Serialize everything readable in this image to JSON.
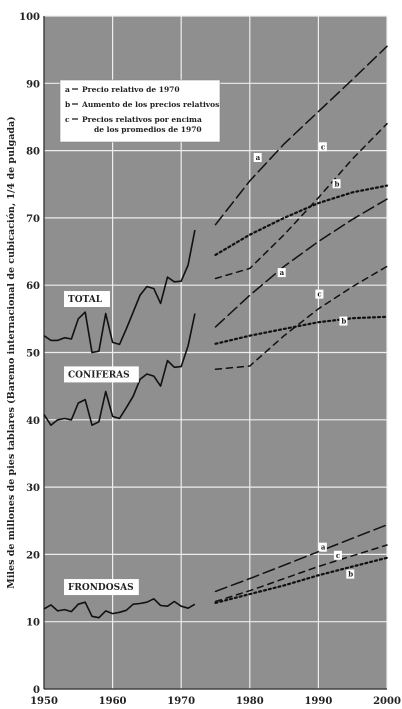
{
  "chart_data": {
    "type": "line",
    "title": "",
    "ylabel": "Miles de millones de pies tablares (Baremo internacional de cubicación, 1/4 de pulgada)",
    "xlabel": "",
    "xlim": [
      1950,
      2000
    ],
    "ylim": [
      0,
      100
    ],
    "x_tick_labels": [
      "1950",
      "1960",
      "1970",
      "1980",
      "1990",
      "2000"
    ],
    "y_tick_labels": [
      "0",
      "10",
      "20",
      "30",
      "40",
      "50",
      "60",
      "70",
      "80",
      "90",
      "100"
    ],
    "grid": true,
    "legend_position": "top-left",
    "legend": [
      {
        "key": "a",
        "text": "Precio relativo de 1970",
        "dash": "long-dash"
      },
      {
        "key": "b",
        "text": "Aumento de los precios relativos",
        "dash": "dotted"
      },
      {
        "key": "c",
        "text": "Precios relativos por encima de los promedios de 1970",
        "dash": "short-dash"
      }
    ],
    "group_labels": [
      {
        "text": "TOTAL",
        "x": 1953.5,
        "y": 57.5
      },
      {
        "text": "CONIFERAS",
        "x": 1953.5,
        "y": 46.3
      },
      {
        "text": "FRONDOSAS",
        "x": 1953.5,
        "y": 14.7
      }
    ],
    "historical": [
      {
        "group": "TOTAL",
        "points": [
          [
            1950,
            52.5
          ],
          [
            1951,
            51.8
          ],
          [
            1952,
            51.8
          ],
          [
            1953,
            52.2
          ],
          [
            1954,
            52.0
          ],
          [
            1955,
            55.0
          ],
          [
            1956,
            56.0
          ],
          [
            1957,
            50.0
          ],
          [
            1958,
            50.2
          ],
          [
            1959,
            55.8
          ],
          [
            1960,
            51.5
          ],
          [
            1961,
            51.2
          ],
          [
            1962,
            53.5
          ],
          [
            1963,
            56.0
          ],
          [
            1964,
            58.5
          ],
          [
            1965,
            59.8
          ],
          [
            1966,
            59.5
          ],
          [
            1967,
            57.3
          ],
          [
            1968,
            61.2
          ],
          [
            1969,
            60.5
          ],
          [
            1970,
            60.6
          ],
          [
            1971,
            63.0
          ],
          [
            1972,
            68.2
          ]
        ]
      },
      {
        "group": "CONIFERAS",
        "points": [
          [
            1950,
            40.8
          ],
          [
            1951,
            39.2
          ],
          [
            1952,
            40.0
          ],
          [
            1953,
            40.2
          ],
          [
            1954,
            40.0
          ],
          [
            1955,
            42.5
          ],
          [
            1956,
            43.0
          ],
          [
            1957,
            39.2
          ],
          [
            1958,
            39.7
          ],
          [
            1959,
            44.2
          ],
          [
            1960,
            40.5
          ],
          [
            1961,
            40.2
          ],
          [
            1962,
            41.8
          ],
          [
            1963,
            43.5
          ],
          [
            1964,
            46.0
          ],
          [
            1965,
            46.8
          ],
          [
            1966,
            46.5
          ],
          [
            1967,
            45.0
          ],
          [
            1968,
            48.8
          ],
          [
            1969,
            47.8
          ],
          [
            1970,
            47.9
          ],
          [
            1971,
            51.0
          ],
          [
            1972,
            55.8
          ]
        ]
      },
      {
        "group": "FRONDOSAS",
        "points": [
          [
            1950,
            11.9
          ],
          [
            1951,
            12.5
          ],
          [
            1952,
            11.6
          ],
          [
            1953,
            11.8
          ],
          [
            1954,
            11.5
          ],
          [
            1955,
            12.6
          ],
          [
            1956,
            12.9
          ],
          [
            1957,
            10.8
          ],
          [
            1958,
            10.6
          ],
          [
            1959,
            11.6
          ],
          [
            1960,
            11.2
          ],
          [
            1961,
            11.4
          ],
          [
            1962,
            11.7
          ],
          [
            1963,
            12.6
          ],
          [
            1964,
            12.7
          ],
          [
            1965,
            12.9
          ],
          [
            1966,
            13.4
          ],
          [
            1967,
            12.4
          ],
          [
            1968,
            12.3
          ],
          [
            1969,
            13.0
          ],
          [
            1970,
            12.3
          ],
          [
            1971,
            12.0
          ],
          [
            1972,
            12.6
          ]
        ]
      }
    ],
    "projections": [
      {
        "group": "TOTAL",
        "key": "a",
        "points": [
          [
            1975,
            69.0
          ],
          [
            1980,
            75.5
          ],
          [
            1985,
            81.0
          ],
          [
            1990,
            85.8
          ],
          [
            1995,
            90.6
          ],
          [
            2000,
            95.5
          ]
        ]
      },
      {
        "group": "TOTAL",
        "key": "b",
        "points": [
          [
            1975,
            64.5
          ],
          [
            1980,
            67.5
          ],
          [
            1985,
            70.0
          ],
          [
            1990,
            72.2
          ],
          [
            1995,
            73.8
          ],
          [
            2000,
            74.8
          ]
        ]
      },
      {
        "group": "TOTAL",
        "key": "c",
        "points": [
          [
            1975,
            61.0
          ],
          [
            1980,
            62.5
          ],
          [
            1985,
            67.5
          ],
          [
            1990,
            73.0
          ],
          [
            1995,
            78.8
          ],
          [
            2000,
            84.0
          ]
        ]
      },
      {
        "group": "CONIFERAS",
        "key": "a",
        "points": [
          [
            1975,
            53.8
          ],
          [
            1980,
            58.5
          ],
          [
            1985,
            62.8
          ],
          [
            1990,
            66.5
          ],
          [
            1995,
            69.8
          ],
          [
            2000,
            72.8
          ]
        ]
      },
      {
        "group": "CONIFERAS",
        "key": "b",
        "points": [
          [
            1975,
            51.3
          ],
          [
            1980,
            52.5
          ],
          [
            1985,
            53.5
          ],
          [
            1990,
            54.5
          ],
          [
            1995,
            55.1
          ],
          [
            2000,
            55.3
          ]
        ]
      },
      {
        "group": "CONIFERAS",
        "key": "c",
        "points": [
          [
            1975,
            47.5
          ],
          [
            1980,
            48.0
          ],
          [
            1985,
            52.5
          ],
          [
            1990,
            56.5
          ],
          [
            1995,
            59.8
          ],
          [
            2000,
            62.8
          ]
        ]
      },
      {
        "group": "FRONDOSAS",
        "key": "a",
        "points": [
          [
            1975,
            14.5
          ],
          [
            1980,
            16.4
          ],
          [
            1985,
            18.4
          ],
          [
            1990,
            20.4
          ],
          [
            1995,
            22.4
          ],
          [
            2000,
            24.4
          ]
        ]
      },
      {
        "group": "FRONDOSAS",
        "key": "b",
        "points": [
          [
            1975,
            12.8
          ],
          [
            1980,
            14.1
          ],
          [
            1985,
            15.4
          ],
          [
            1990,
            16.9
          ],
          [
            1995,
            18.2
          ],
          [
            2000,
            19.5
          ]
        ]
      },
      {
        "group": "FRONDOSAS",
        "key": "c",
        "points": [
          [
            1975,
            13.0
          ],
          [
            1980,
            14.6
          ],
          [
            1985,
            16.4
          ],
          [
            1990,
            18.2
          ],
          [
            1995,
            19.8
          ],
          [
            2000,
            21.4
          ]
        ]
      }
    ],
    "projection_tags": [
      {
        "key": "a",
        "x": 1981.0,
        "y": 78.6
      },
      {
        "key": "c",
        "x": 1990.5,
        "y": 80.2
      },
      {
        "key": "b",
        "x": 1992.5,
        "y": 74.7
      },
      {
        "key": "a",
        "x": 1984.5,
        "y": 61.5
      },
      {
        "key": "c",
        "x": 1990.0,
        "y": 58.3
      },
      {
        "key": "b",
        "x": 1993.5,
        "y": 54.3
      },
      {
        "key": "a",
        "x": 1990.5,
        "y": 20.7
      },
      {
        "key": "c",
        "x": 1992.7,
        "y": 19.5
      },
      {
        "key": "b",
        "x": 1994.5,
        "y": 16.7
      }
    ]
  }
}
